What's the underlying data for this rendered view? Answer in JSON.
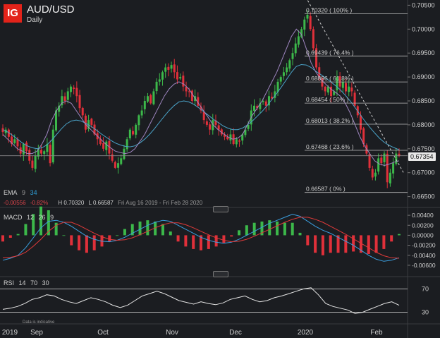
{
  "header": {
    "logo": "IG",
    "title": "AUD/USD",
    "subtitle": "Daily"
  },
  "price_legend": {
    "ema_label": "EMA",
    "ema_fast": "9",
    "ema_slow": "34",
    "change": "-0.00556",
    "change_pct": "-0.82%",
    "high": "H 0.70320",
    "low": "L 0.66587",
    "range": "Fri Aug 16 2019 - Fri Feb 28 2020"
  },
  "last_price": "0.67354",
  "macd_legend": {
    "label": "MACD",
    "p1": "12",
    "p2": "26",
    "p3": "9"
  },
  "rsi_legend": {
    "label": "RSI",
    "p1": "14",
    "p2": "70",
    "p3": "30"
  },
  "disclaimer": "Data is indicative",
  "colors": {
    "background": "#1b1d21",
    "bull": "#3cb84a",
    "bear": "#e0303a",
    "ema_fast": "#9f86c0",
    "ema_slow": "#4aa3c8",
    "macd_line": "#3b9fe0",
    "signal_line": "#e03a3a",
    "rsi_line": "#e6e6e6"
  },
  "chart_data": {
    "type": "candlestick",
    "title": "AUD/USD",
    "subtitle": "Daily",
    "price_axis": {
      "ylim": [
        0.6645,
        0.7055
      ],
      "ticks": [
        "0.70500",
        "0.70000",
        "0.69500",
        "0.69000",
        "0.68500",
        "0.68000",
        "0.67500",
        "0.67000",
        "0.66500"
      ]
    },
    "x_axis": {
      "labels": [
        "2019",
        "Sep",
        "Oct",
        "Nov",
        "Dec",
        "2020",
        "Feb"
      ]
    },
    "closes": [
      0.6785,
      0.679,
      0.6775,
      0.676,
      0.677,
      0.6755,
      0.674,
      0.676,
      0.6745,
      0.6725,
      0.671,
      0.6735,
      0.675,
      0.674,
      0.6745,
      0.676,
      0.672,
      0.679,
      0.683,
      0.684,
      0.686,
      0.685,
      0.687,
      0.688,
      0.6875,
      0.686,
      0.6835,
      0.682,
      0.679,
      0.681,
      0.68,
      0.678,
      0.677,
      0.676,
      0.675,
      0.6765,
      0.674,
      0.6725,
      0.671,
      0.672,
      0.673,
      0.675,
      0.677,
      0.679,
      0.678,
      0.68,
      0.682,
      0.683,
      0.685,
      0.686,
      0.6845,
      0.687,
      0.689,
      0.6895,
      0.691,
      0.692,
      0.6915,
      0.6925,
      0.691,
      0.6895,
      0.69,
      0.688,
      0.687,
      0.687,
      0.685,
      0.686,
      0.684,
      0.683,
      0.681,
      0.68,
      0.679,
      0.681,
      0.68,
      0.679,
      0.678,
      0.6775,
      0.677,
      0.678,
      0.676,
      0.677,
      0.6765,
      0.678,
      0.679,
      0.68,
      0.683,
      0.684,
      0.6835,
      0.6845,
      0.685,
      0.684,
      0.686,
      0.6855,
      0.687,
      0.689,
      0.69,
      0.691,
      0.692,
      0.6935,
      0.695,
      0.697,
      0.6985,
      0.7,
      0.702,
      0.703,
      0.7,
      0.696,
      0.692,
      0.69,
      0.688,
      0.687,
      0.688,
      0.686,
      0.687,
      0.69,
      0.688,
      0.689,
      0.687,
      0.688,
      0.687,
      0.684,
      0.682,
      0.679,
      0.676,
      0.674,
      0.671,
      0.669,
      0.67,
      0.673,
      0.672,
      0.674,
      0.668,
      0.67,
      0.672,
      0.674,
      0.6735
    ],
    "ema_fast": [
      0.678,
      0.677,
      0.676,
      0.675,
      0.6745,
      0.674,
      0.674,
      0.6745,
      0.676,
      0.678,
      0.681,
      0.683,
      0.6845,
      0.685,
      0.6845,
      0.683,
      0.6815,
      0.68,
      0.679,
      0.678,
      0.677,
      0.676,
      0.6752,
      0.6745,
      0.6742,
      0.674,
      0.6742,
      0.675,
      0.6765,
      0.678,
      0.68,
      0.682,
      0.684,
      0.686,
      0.6875,
      0.6885,
      0.689,
      0.6885,
      0.6875,
      0.686,
      0.6845,
      0.683,
      0.6815,
      0.68,
      0.679,
      0.6782,
      0.6775,
      0.677,
      0.6772,
      0.678,
      0.68,
      0.682,
      0.6835,
      0.685,
      0.687,
      0.689,
      0.691,
      0.6935,
      0.696,
      0.6985,
      0.7,
      0.699,
      0.696,
      0.693,
      0.691,
      0.6895,
      0.6885,
      0.6875,
      0.6868,
      0.686,
      0.6845,
      0.6825,
      0.68,
      0.6775,
      0.6755,
      0.674,
      0.6725,
      0.6718,
      0.6715,
      0.6718,
      0.6722,
      0.6725
    ],
    "ema_slow": [
      0.679,
      0.6785,
      0.6778,
      0.677,
      0.6762,
      0.6756,
      0.6752,
      0.675,
      0.6752,
      0.6758,
      0.6768,
      0.678,
      0.6792,
      0.6802,
      0.6808,
      0.681,
      0.6808,
      0.6803,
      0.6797,
      0.679,
      0.6782,
      0.6775,
      0.6768,
      0.6762,
      0.6758,
      0.6755,
      0.6754,
      0.6756,
      0.6762,
      0.677,
      0.678,
      0.6792,
      0.6805,
      0.6818,
      0.683,
      0.684,
      0.6848,
      0.685,
      0.6848,
      0.6843,
      0.6836,
      0.6828,
      0.682,
      0.6812,
      0.6805,
      0.6798,
      0.6793,
      0.679,
      0.679,
      0.6793,
      0.68,
      0.6808,
      0.6818,
      0.6828,
      0.684,
      0.6853,
      0.6866,
      0.688,
      0.6895,
      0.691,
      0.6922,
      0.6926,
      0.6925,
      0.692,
      0.6912,
      0.6905,
      0.6898,
      0.689,
      0.6882,
      0.6873,
      0.6862,
      0.685,
      0.6836,
      0.6822,
      0.6808,
      0.6795,
      0.6783,
      0.6772,
      0.6763,
      0.6757,
      0.6752,
      0.6748
    ],
    "last_price": 0.67354,
    "fibonacci": [
      {
        "label": "0.70320 ( 100% )",
        "value": 0.7032
      },
      {
        "label": "0.69439 ( 76.4% )",
        "value": 0.69439
      },
      {
        "label": "0.68896 ( 61.8% )",
        "value": 0.68896
      },
      {
        "label": "0.68454 ( 50% )",
        "value": 0.68454
      },
      {
        "label": "0.68013 ( 38.2% )",
        "value": 0.68013
      },
      {
        "label": "0.67468 ( 23.6% )",
        "value": 0.67468
      },
      {
        "label": "0.66587 ( 0% )",
        "value": 0.66587
      }
    ],
    "trendline": {
      "from": [
        0.755,
        0.706
      ],
      "to": [
        0.99,
        0.67
      ]
    },
    "macd": {
      "ylim": [
        -0.007,
        0.005
      ],
      "ticks": [
        "0.00400",
        "0.00200",
        "0.00000",
        "-0.00200",
        "-0.00400",
        "-0.00600"
      ],
      "macd_line": [
        -0.005,
        -0.0046,
        -0.004,
        -0.0025,
        -0.0005,
        0.0015,
        0.0028,
        0.003,
        0.0026,
        0.0018,
        0.0008,
        -0.0002,
        -0.0008,
        -0.0012,
        -0.0013,
        -0.001,
        -0.0004,
        0.0004,
        0.0012,
        0.002,
        0.0026,
        0.003,
        0.0028,
        0.002,
        0.0012,
        0.0004,
        -0.0004,
        -0.001,
        -0.0014,
        -0.0016,
        -0.0014,
        -0.0008,
        0.0,
        0.0008,
        0.0016,
        0.0024,
        0.003,
        0.0036,
        0.0042,
        0.0038,
        0.0028,
        0.0018,
        0.001,
        0.0004,
        -0.0004,
        -0.0012,
        -0.002,
        -0.003,
        -0.004,
        -0.0048,
        -0.0052,
        -0.005,
        -0.0045
      ],
      "signal_line": [
        -0.0045,
        -0.0044,
        -0.0041,
        -0.0034,
        -0.0022,
        -0.0008,
        0.0008,
        0.002,
        0.0026,
        0.0026,
        0.002,
        0.0012,
        0.0004,
        -0.0003,
        -0.0008,
        -0.001,
        -0.0009,
        -0.0005,
        0.0001,
        0.0008,
        0.0015,
        0.0021,
        0.0025,
        0.0025,
        0.0021,
        0.0015,
        0.0008,
        0.0001,
        -0.0005,
        -0.001,
        -0.0013,
        -0.0012,
        -0.0008,
        -0.0002,
        0.0005,
        0.0012,
        0.0019,
        0.0026,
        0.0032,
        0.0036,
        0.0036,
        0.0032,
        0.0026,
        0.0018,
        0.001,
        0.0002,
        -0.0007,
        -0.0016,
        -0.0025,
        -0.0034,
        -0.0041,
        -0.0045,
        -0.0046
      ]
    },
    "rsi": {
      "ylim": [
        15,
        85
      ],
      "levels": [
        70,
        30
      ],
      "ticks": [
        "70",
        "30"
      ],
      "values": [
        35,
        37,
        40,
        45,
        52,
        55,
        60,
        58,
        52,
        48,
        45,
        50,
        55,
        52,
        48,
        42,
        38,
        42,
        50,
        58,
        62,
        66,
        62,
        56,
        50,
        47,
        44,
        48,
        45,
        43,
        46,
        52,
        55,
        58,
        52,
        48,
        50,
        55,
        58,
        62,
        66,
        70,
        72,
        60,
        45,
        40,
        37,
        34,
        28,
        30,
        35,
        40,
        45,
        48,
        42
      ]
    }
  }
}
